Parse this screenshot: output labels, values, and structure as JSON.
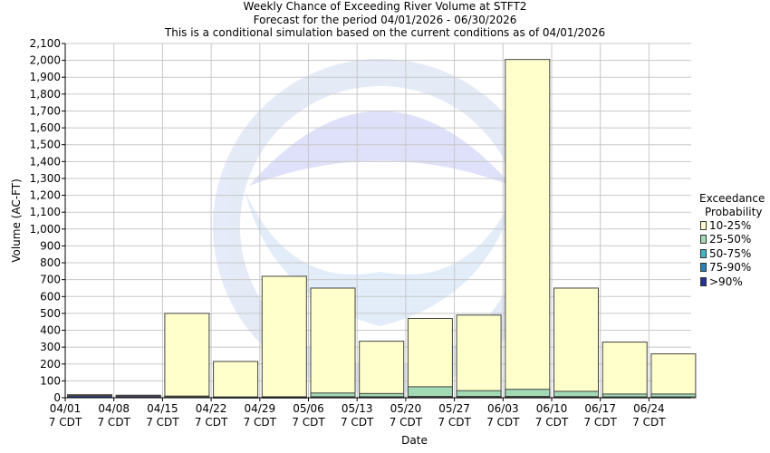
{
  "chart_data": {
    "type": "bar",
    "title": "Weekly Chance of Exceeding River Volume at STFT2",
    "subtitle": "Forecast for the period 04/01/2026 - 06/30/2026",
    "subtitle2": "This is a conditional simulation based on the current conditions as of 04/01/2026",
    "xlabel": "Date",
    "ylabel": "Volume (AC-FT)",
    "ylim": [
      0,
      2100
    ],
    "yticks": [
      "0",
      "100",
      "200",
      "300",
      "400",
      "500",
      "600",
      "700",
      "800",
      "900",
      "1,000",
      "1,100",
      "1,200",
      "1,300",
      "1,400",
      "1,500",
      "1,600",
      "1,700",
      "1,800",
      "1,900",
      "2,000",
      "2,100"
    ],
    "grid": true,
    "categories": [
      "04/01",
      "04/08",
      "04/15",
      "04/22",
      "04/29",
      "05/06",
      "05/13",
      "05/20",
      "05/27",
      "06/03",
      "06/10",
      "06/17",
      "06/24"
    ],
    "category_sub": "7 CDT",
    "legend_title": [
      "Exceedance",
      "Probability"
    ],
    "legend_placement": "right",
    "series": [
      {
        "name": "10-25%",
        "color": "#ffffcc",
        "values": [
          18,
          15,
          500,
          215,
          720,
          650,
          335,
          470,
          490,
          2005,
          650,
          330,
          260
        ]
      },
      {
        "name": "25-50%",
        "color": "#a1dab4",
        "values": [
          16,
          13,
          10,
          5,
          6,
          28,
          25,
          65,
          42,
          50,
          38,
          22,
          22
        ]
      },
      {
        "name": "50-75%",
        "color": "#41b6c4",
        "values": [
          14,
          11,
          6,
          3,
          3,
          6,
          6,
          8,
          8,
          8,
          7,
          5,
          5
        ]
      },
      {
        "name": "75-90%",
        "color": "#2c7fb8",
        "values": [
          12,
          9,
          4,
          2,
          2,
          3,
          3,
          4,
          4,
          4,
          3,
          3,
          3
        ]
      },
      {
        "name": ">90%",
        "color": "#253494",
        "values": [
          10,
          7,
          3,
          1,
          1,
          2,
          2,
          2,
          2,
          2,
          2,
          2,
          2
        ]
      }
    ]
  }
}
